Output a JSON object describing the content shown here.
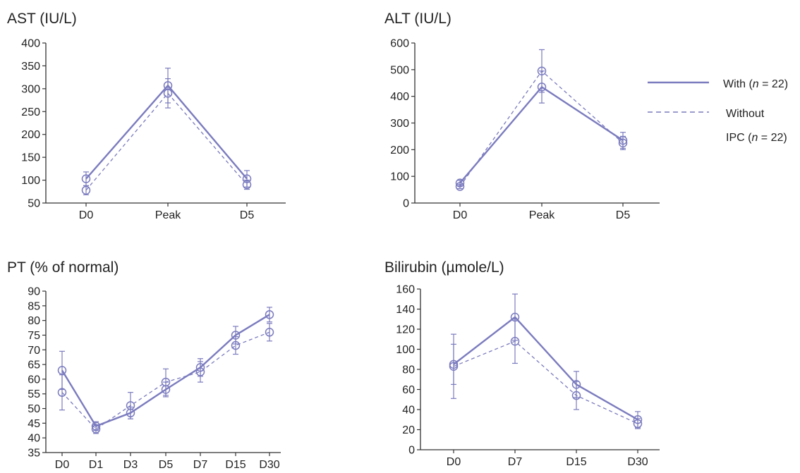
{
  "colors": {
    "series": "#7b7bbf",
    "axis": "#333333",
    "text": "#222222"
  },
  "legend": {
    "with_prefix": "With (",
    "with_n": "n",
    "with_suffix": " = 22)",
    "without_line1": "Without",
    "without_line2_prefix": "IPC (",
    "without_n": "n",
    "without_line2_suffix": " = 22)"
  },
  "chart_data": [
    {
      "type": "line",
      "title": "AST (IU/L)",
      "categories": [
        "D0",
        "Peak",
        "D5"
      ],
      "ylim": [
        50,
        400
      ],
      "yticks": [
        50,
        100,
        150,
        200,
        250,
        300,
        350,
        400
      ],
      "series": [
        {
          "name": "With (n = 22)",
          "style": "solid",
          "values": [
            103,
            307,
            103
          ],
          "errors": [
            15,
            38,
            18
          ]
        },
        {
          "name": "Without IPC (n = 22)",
          "style": "dashed",
          "values": [
            78,
            290,
            90
          ],
          "errors": [
            10,
            32,
            10
          ]
        }
      ]
    },
    {
      "type": "line",
      "title": "ALT (IU/L)",
      "categories": [
        "D0",
        "Peak",
        "D5"
      ],
      "ylim": [
        0,
        600
      ],
      "yticks": [
        0,
        100,
        200,
        300,
        400,
        500,
        600
      ],
      "series": [
        {
          "name": "With (n = 22)",
          "style": "solid",
          "values": [
            75,
            435,
            235
          ],
          "errors": [
            10,
            60,
            30
          ]
        },
        {
          "name": "Without IPC (n = 22)",
          "style": "dashed",
          "values": [
            62,
            495,
            225
          ],
          "errors": [
            8,
            80,
            25
          ]
        }
      ]
    },
    {
      "type": "line",
      "title": "PT (% of normal)",
      "categories": [
        "D0",
        "D1",
        "D3",
        "D5",
        "D7",
        "D15",
        "D30"
      ],
      "ylim": [
        35,
        90
      ],
      "yticks": [
        35,
        40,
        45,
        50,
        55,
        60,
        65,
        70,
        75,
        80,
        85,
        90
      ],
      "series": [
        {
          "name": "With (n = 22)",
          "style": "solid",
          "values": [
            63,
            44,
            48.5,
            56.5,
            64,
            75,
            82
          ],
          "errors": [
            6.5,
            1.5,
            2,
            2.5,
            3,
            3,
            2.5
          ]
        },
        {
          "name": "Without IPC (n = 22)",
          "style": "dashed",
          "values": [
            55.5,
            43,
            51,
            59,
            62.5,
            71.5,
            76
          ],
          "errors": [
            6,
            1.5,
            4.5,
            4.5,
            3.5,
            3,
            3
          ]
        }
      ]
    },
    {
      "type": "line",
      "title": "Bilirubin (µmole/L)",
      "categories": [
        "D0",
        "D7",
        "D15",
        "D30"
      ],
      "ylim": [
        0,
        160
      ],
      "yticks": [
        0,
        20,
        40,
        60,
        80,
        100,
        120,
        140,
        160
      ],
      "series": [
        {
          "name": "With (n = 22)",
          "style": "solid",
          "values": [
            85,
            132,
            65,
            30
          ],
          "errors": [
            20,
            23,
            13,
            8
          ]
        },
        {
          "name": "Without IPC (n = 22)",
          "style": "dashed",
          "values": [
            83,
            108,
            54,
            26
          ],
          "errors": [
            32,
            22,
            14,
            5
          ]
        }
      ]
    }
  ]
}
